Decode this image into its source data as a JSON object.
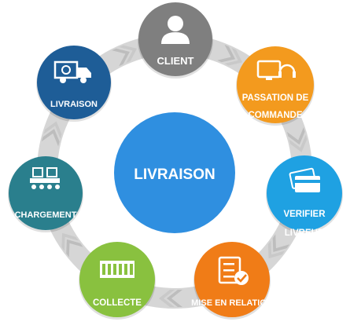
{
  "center": {
    "label": "LIVRAISON",
    "color": "#2f8fe0"
  },
  "ring_color": "#d6d6d6",
  "nodes": [
    {
      "id": "client",
      "label_lines": [
        "CLIENT"
      ],
      "color": "#7f7f7f",
      "icon": "person-icon"
    },
    {
      "id": "passation",
      "label_lines": [
        "PASSATION DE",
        "COMMANDE"
      ],
      "color": "#f39a1e",
      "icon": "computer-headset-icon"
    },
    {
      "id": "verifier",
      "label_lines": [
        "VERIFIER",
        "LIVREUR"
      ],
      "color": "#1fa1e2",
      "icon": "credit-card-icon"
    },
    {
      "id": "mise-en-relation",
      "label_lines": [
        "MISE EN RELATION"
      ],
      "color": "#f07c17",
      "icon": "checklist-icon"
    },
    {
      "id": "collecte",
      "label_lines": [
        "COLLECTE"
      ],
      "color": "#89c13f",
      "icon": "building-icon"
    },
    {
      "id": "chargement",
      "label_lines": [
        "CHARGEMENT"
      ],
      "color": "#2a7f8d",
      "icon": "conveyor-icon"
    },
    {
      "id": "livraison",
      "label_lines": [
        "LIVRAISON"
      ],
      "color": "#1e5d97",
      "icon": "delivery-truck-icon"
    }
  ]
}
